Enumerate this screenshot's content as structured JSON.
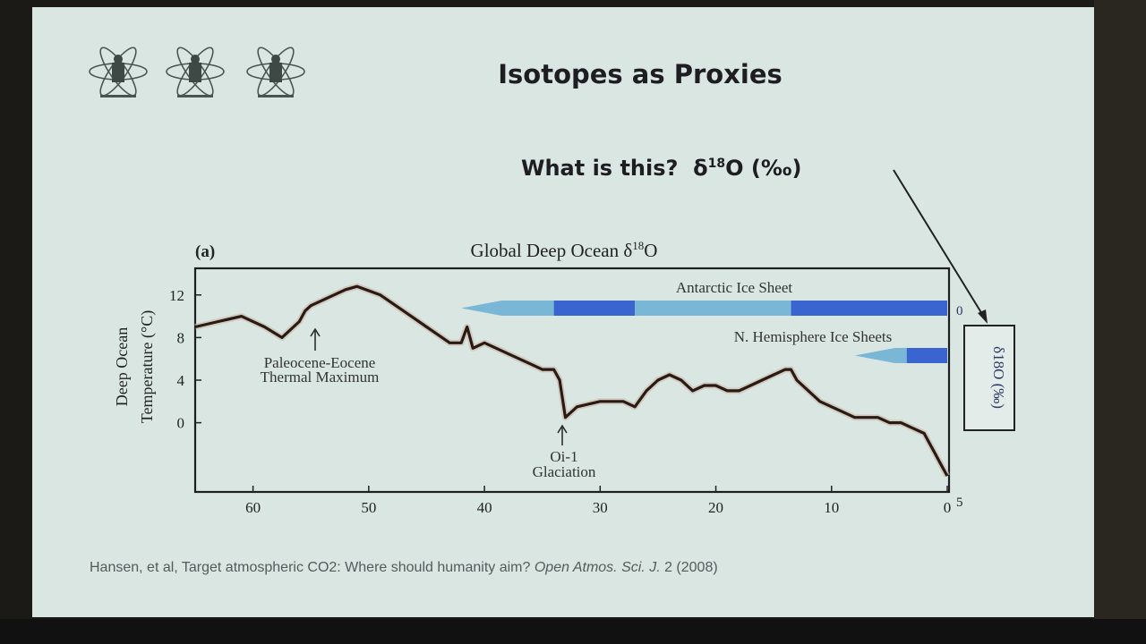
{
  "slide": {
    "title": "Isotopes as Proxies",
    "question": "What is this?",
    "question_symbol": "δ",
    "question_sup": "18",
    "question_rest": "O (‰)",
    "citation_pre": "Hansen, et al, Target atmospheric CO2: Where should humanity aim? ",
    "citation_journal": "Open Atmos. Sci. J.",
    "citation_post": " 2 (2008)"
  },
  "colors": {
    "slide_bg": "#d9e6e1",
    "text": "#1e1e22",
    "ice_dark": "#3a64cf",
    "ice_light": "#7ab7d6",
    "curve": "#2a1a12"
  },
  "chart_data": {
    "type": "line",
    "panel_label": "(a)",
    "title_pre": "Global Deep Ocean δ",
    "title_sup": "18",
    "title_post": "O",
    "ylabel_line1": "Deep Ocean",
    "ylabel_line2": "Temperature (°C)",
    "xlim": [
      65,
      0
    ],
    "ylim": [
      -6.5,
      14.5
    ],
    "x_ticks": [
      "60",
      "50",
      "40",
      "30",
      "20",
      "10",
      "0"
    ],
    "y_ticks": [
      "12",
      "8",
      "4",
      "0"
    ],
    "right_ticks": [
      "0",
      "5"
    ],
    "right_axis_label": "δ18O (‰)",
    "annotations": {
      "petm_line1": "Paleocene-Eocene",
      "petm_line2": "Thermal Maximum",
      "oi_line1": "Oi-1",
      "oi_line2": "Glaciation",
      "antarctic": "Antarctic Ice Sheet",
      "nh": "N. Hemisphere Ice Sheets"
    },
    "series": [
      {
        "x": [
          65,
          63,
          61,
          59,
          57.5,
          56,
          55.5,
          55,
          54,
          52,
          51,
          49,
          47,
          45,
          43,
          42,
          41.5,
          41,
          40,
          38,
          36,
          35,
          34,
          33.5,
          33,
          32,
          30,
          28,
          27,
          26,
          25,
          24,
          23,
          22,
          21,
          20,
          19,
          18,
          17,
          16,
          15,
          14,
          13.5,
          13,
          12,
          11,
          10,
          9,
          8,
          7,
          6,
          5,
          4,
          3,
          2,
          1.5,
          1,
          0.5,
          0
        ],
        "y": [
          9,
          9.5,
          10,
          9,
          8,
          9.5,
          10.5,
          11,
          11.5,
          12.5,
          12.8,
          12,
          10.5,
          9,
          7.5,
          7.5,
          9,
          7,
          7.5,
          6.5,
          5.5,
          5,
          5,
          4,
          0.5,
          1.5,
          2,
          2,
          1.5,
          3,
          4,
          4.5,
          4,
          3,
          3.5,
          3.5,
          3,
          3,
          3.5,
          4,
          4.5,
          5,
          5,
          4,
          3,
          2,
          1.5,
          1,
          0.5,
          0.5,
          0.5,
          0,
          0,
          -0.5,
          -1,
          -2,
          -3,
          -4,
          -5
        ]
      }
    ],
    "ice_sheets": {
      "antarctic": [
        {
          "start": 42,
          "end": 34,
          "level": "light"
        },
        {
          "start": 34,
          "end": 27,
          "level": "dark"
        },
        {
          "start": 27,
          "end": 13.5,
          "level": "light"
        },
        {
          "start": 13.5,
          "end": 0,
          "level": "dark"
        }
      ],
      "nh": [
        {
          "start": 8,
          "end": 3.5,
          "level": "light"
        },
        {
          "start": 3.5,
          "end": 0,
          "level": "dark"
        }
      ]
    }
  }
}
